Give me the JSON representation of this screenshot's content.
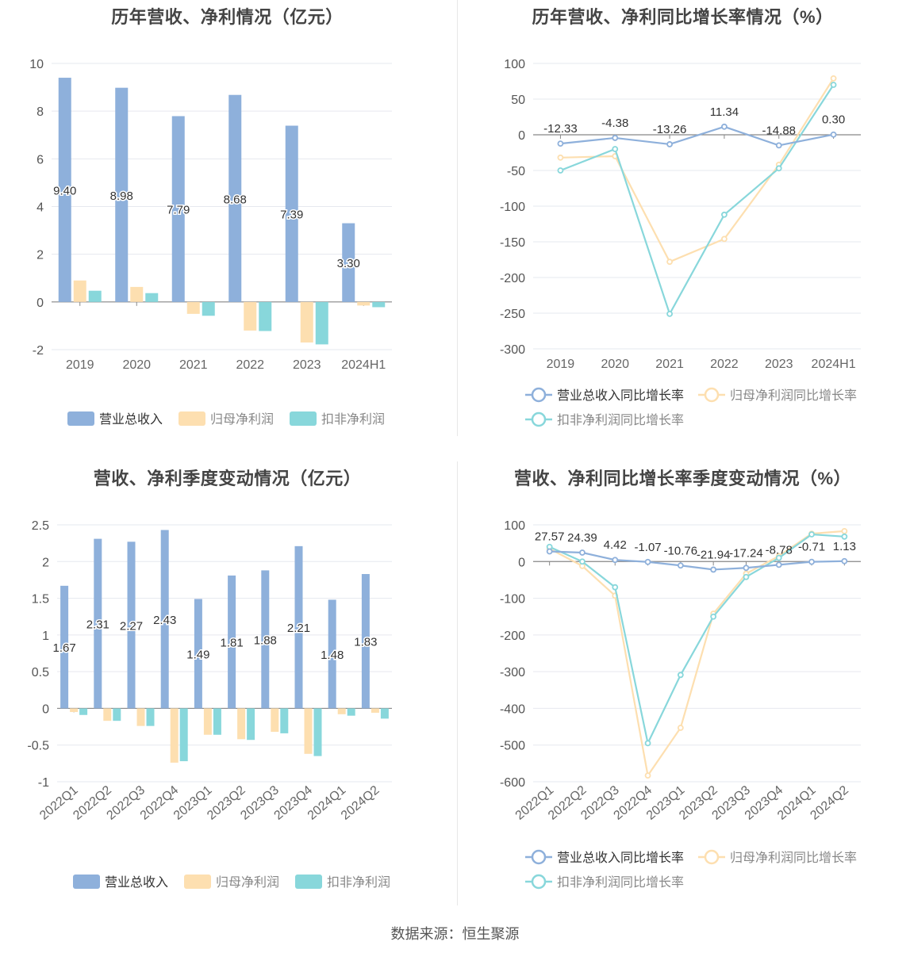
{
  "source": "数据来源：恒生聚源",
  "chart_data": [
    {
      "type": "bar",
      "title": "历年营收、净利情况（亿元）",
      "categories": [
        "2019",
        "2020",
        "2021",
        "2022",
        "2023",
        "2024H1"
      ],
      "ylim": [
        -2,
        10
      ],
      "yticks": [
        -2,
        0,
        2,
        4,
        6,
        8,
        10
      ],
      "series": [
        {
          "name": "营业总收入",
          "color": "#8eb0db",
          "values": [
            9.4,
            8.98,
            7.79,
            8.68,
            7.39,
            3.3
          ],
          "labels": [
            "9.40",
            "8.98",
            "7.79",
            "8.68",
            "7.39",
            "3.30"
          ]
        },
        {
          "name": "归母净利润",
          "color": "#fddfb0",
          "values": [
            0.9,
            0.63,
            -0.5,
            -1.2,
            -1.7,
            -0.15
          ]
        },
        {
          "name": "扣非净利润",
          "color": "#88d7db",
          "values": [
            0.47,
            0.37,
            -0.58,
            -1.22,
            -1.78,
            -0.22
          ]
        }
      ],
      "grid": true,
      "legend": "bottom"
    },
    {
      "type": "line",
      "title": "历年营收、净利同比增长率情况（%）",
      "categories": [
        "2019",
        "2020",
        "2021",
        "2022",
        "2023",
        "2024H1"
      ],
      "ylim": [
        -300,
        100
      ],
      "yticks": [
        -300,
        -250,
        -200,
        -150,
        -100,
        -50,
        0,
        50,
        100
      ],
      "series": [
        {
          "name": "营业总收入同比增长率",
          "color": "#8eb0db",
          "values": [
            -12.33,
            -4.38,
            -13.26,
            11.34,
            -14.88,
            0.3
          ],
          "labels": [
            "-12.33",
            "-4.38",
            "-13.26",
            "11.34",
            "-14.88",
            "0.30"
          ]
        },
        {
          "name": "归母净利润同比增长率",
          "color": "#fddfb0",
          "values": [
            -32,
            -30,
            -178,
            -146,
            -42,
            79
          ]
        },
        {
          "name": "扣非净利润同比增长率",
          "color": "#88d7db",
          "values": [
            -50,
            -20,
            -251,
            -112,
            -47,
            70
          ]
        }
      ],
      "grid": true,
      "legend": "bottom"
    },
    {
      "type": "bar",
      "title": "营收、净利季度变动情况（亿元）",
      "categories": [
        "2022Q1",
        "2022Q2",
        "2022Q3",
        "2022Q4",
        "2023Q1",
        "2023Q2",
        "2023Q3",
        "2023Q4",
        "2024Q1",
        "2024Q2"
      ],
      "ylim": [
        -1,
        2.5
      ],
      "yticks": [
        -1,
        -0.5,
        0,
        0.5,
        1,
        1.5,
        2,
        2.5
      ],
      "series": [
        {
          "name": "营业总收入",
          "color": "#8eb0db",
          "values": [
            1.67,
            2.31,
            2.27,
            2.43,
            1.49,
            1.81,
            1.88,
            2.21,
            1.48,
            1.83
          ],
          "labels": [
            "1.67",
            "2.31",
            "2.27",
            "2.43",
            "1.49",
            "1.81",
            "1.88",
            "2.21",
            "1.48",
            "1.83"
          ]
        },
        {
          "name": "归母净利润",
          "color": "#fddfb0",
          "values": [
            -0.05,
            -0.17,
            -0.24,
            -0.74,
            -0.36,
            -0.42,
            -0.32,
            -0.62,
            -0.08,
            -0.06
          ]
        },
        {
          "name": "扣非净利润",
          "color": "#88d7db",
          "values": [
            -0.09,
            -0.17,
            -0.24,
            -0.72,
            -0.36,
            -0.43,
            -0.34,
            -0.65,
            -0.1,
            -0.14
          ]
        }
      ],
      "grid": true,
      "legend": "bottom"
    },
    {
      "type": "line",
      "title": "营收、净利同比增长率季度变动情况（%）",
      "categories": [
        "2022Q1",
        "2022Q2",
        "2022Q3",
        "2022Q4",
        "2023Q1",
        "2023Q2",
        "2023Q3",
        "2023Q4",
        "2024Q1",
        "2024Q2"
      ],
      "ylim": [
        -600,
        100
      ],
      "yticks": [
        -600,
        -500,
        -400,
        -300,
        -200,
        -100,
        0,
        100
      ],
      "series": [
        {
          "name": "营业总收入同比增长率",
          "color": "#8eb0db",
          "values": [
            27.57,
            24.39,
            4.42,
            -1.07,
            -10.76,
            -21.94,
            -17.24,
            -8.78,
            -0.71,
            1.13
          ],
          "labels": [
            "27.57",
            "24.39",
            "4.42",
            "-1.07",
            "-10.76",
            "-21.94",
            "-17.24",
            "-8.78",
            "-0.71",
            "1.13"
          ]
        },
        {
          "name": "归母净利润同比增长率",
          "color": "#fddfb0",
          "values": [
            35,
            -12,
            -93,
            -583,
            -453,
            -142,
            -33,
            15,
            76,
            83
          ]
        },
        {
          "name": "扣非净利润同比增长率",
          "color": "#88d7db",
          "values": [
            40,
            0,
            -70,
            -495,
            -309,
            -150,
            -42,
            10,
            74,
            68
          ]
        }
      ],
      "grid": true,
      "legend": "bottom"
    }
  ]
}
